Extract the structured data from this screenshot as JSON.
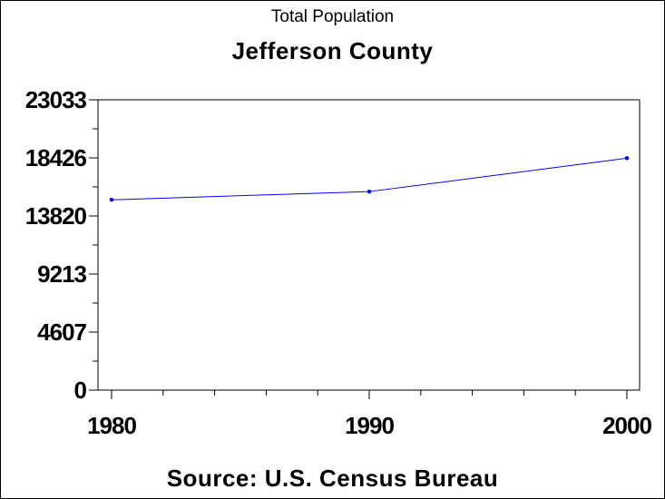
{
  "chart_data": {
    "type": "line",
    "title": "Total Population",
    "subtitle": "Jefferson County",
    "source": "Source: U.S. Census Bureau",
    "x": [
      1980,
      1990,
      2000
    ],
    "series": [
      {
        "values": [
          15100,
          15750,
          18400
        ]
      }
    ],
    "xlim": [
      1980,
      2000
    ],
    "ylim": [
      0,
      23033
    ],
    "yticks": [
      "0",
      "4607",
      "9213",
      "13820",
      "18426",
      "23033"
    ],
    "xticks": [
      "1980",
      "1990",
      "2000"
    ],
    "grid": false,
    "colors": {
      "line": "#0000ff",
      "axis": "#000000"
    }
  }
}
